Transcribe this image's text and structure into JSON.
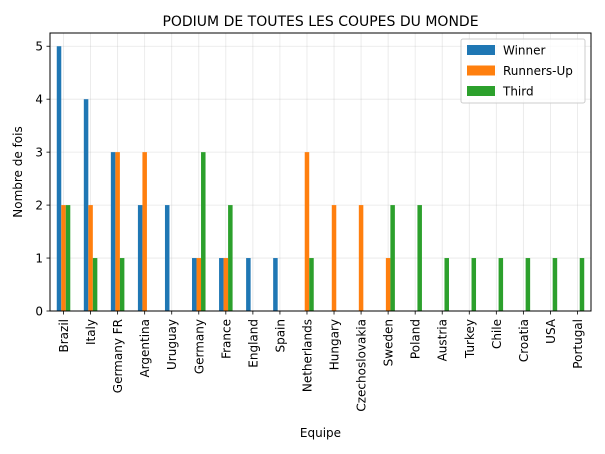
{
  "chart_data": {
    "type": "bar",
    "title": "PODIUM DE TOUTES LES COUPES DU MONDE",
    "xlabel": "Equipe",
    "ylabel": "Nombre de fois",
    "ylim": [
      0,
      5.25
    ],
    "yticks": [
      0,
      1,
      2,
      3,
      4,
      5
    ],
    "grid": true,
    "legend_position": "top-right",
    "categories": [
      "Brazil",
      "Italy",
      "Germany FR",
      "Argentina",
      "Uruguay",
      "Germany",
      "France",
      "England",
      "Spain",
      "Netherlands",
      "Hungary",
      "Czechoslovakia",
      "Sweden",
      "Poland",
      "Austria",
      "Turkey",
      "Chile",
      "Croatia",
      "USA",
      "Portugal"
    ],
    "series": [
      {
        "name": "Winner",
        "color": "#1f77b4",
        "values": [
          5,
          4,
          3,
          2,
          2,
          1,
          1,
          1,
          1,
          0,
          0,
          0,
          0,
          0,
          0,
          0,
          0,
          0,
          0,
          0
        ]
      },
      {
        "name": "Runners-Up",
        "color": "#ff7f0e",
        "values": [
          2,
          2,
          3,
          3,
          0,
          1,
          1,
          0,
          0,
          3,
          2,
          2,
          1,
          0,
          0,
          0,
          0,
          0,
          0,
          0
        ]
      },
      {
        "name": "Third",
        "color": "#2ca02c",
        "values": [
          2,
          1,
          1,
          0,
          0,
          3,
          2,
          0,
          0,
          1,
          0,
          0,
          2,
          2,
          1,
          1,
          1,
          1,
          1,
          1
        ]
      }
    ]
  }
}
